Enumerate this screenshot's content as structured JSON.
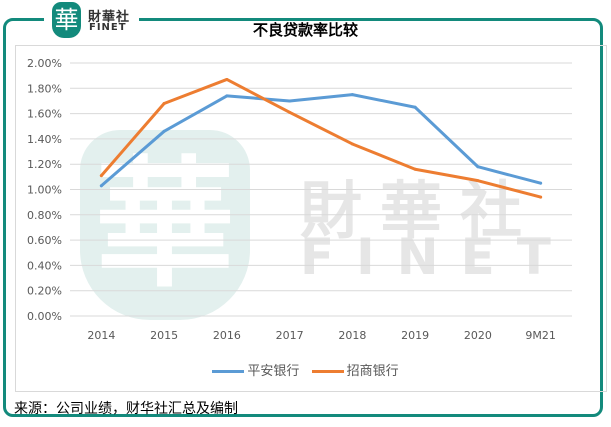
{
  "logo": {
    "cn": "財華社",
    "en": "FINET"
  },
  "watermark": {
    "cn": "財華社",
    "en": "FINET",
    "glyph": "華"
  },
  "source": "来源：公司业绩，财华社汇总及编制",
  "chart_data": {
    "type": "line",
    "title": "不良贷款率比较",
    "categories": [
      "2014",
      "2015",
      "2016",
      "2017",
      "2018",
      "2019",
      "2020",
      "9M21"
    ],
    "series": [
      {
        "name": "平安银行",
        "color": "#5b9bd5",
        "values": [
          1.03,
          1.46,
          1.74,
          1.7,
          1.75,
          1.65,
          1.18,
          1.05
        ]
      },
      {
        "name": "招商银行",
        "color": "#ed7d31",
        "values": [
          1.11,
          1.68,
          1.87,
          1.61,
          1.36,
          1.16,
          1.07,
          0.94
        ]
      }
    ],
    "yticks": [
      "0.00%",
      "0.20%",
      "0.40%",
      "0.60%",
      "0.80%",
      "1.00%",
      "1.20%",
      "1.40%",
      "1.60%",
      "1.80%",
      "2.00%"
    ],
    "ylim": [
      0,
      2.0
    ],
    "yunit": "%",
    "grid": true,
    "legend": "bottom"
  }
}
